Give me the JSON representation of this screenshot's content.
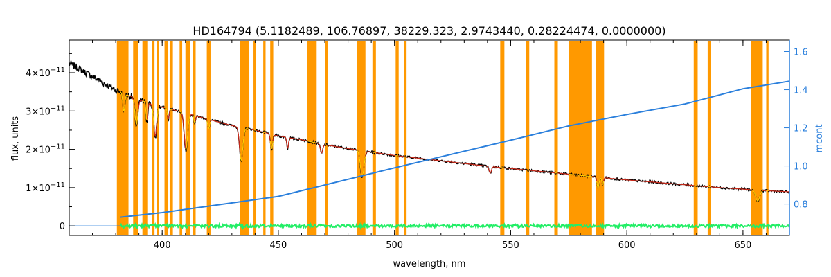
{
  "chart_data": {
    "type": "line",
    "title": "HD164794    (5.1182489, 106.76897, 38229.323, 2.9743440, 0.28224474, 0.0000000)",
    "xlabel": "wavelength, nm",
    "ylabel": "flux, units",
    "y2label": "mcont",
    "xlim": [
      360,
      670
    ],
    "ylim": [
      -0.25,
      4.85
    ],
    "y_unit_power": "-11",
    "y2lim": [
      0.635,
      1.66
    ],
    "x_ticks": [
      400,
      450,
      500,
      550,
      600,
      650
    ],
    "y_ticks": [
      {
        "value": 0,
        "mant": "0",
        "exp": ""
      },
      {
        "value": 1,
        "mant": "1×10",
        "exp": "−11"
      },
      {
        "value": 2,
        "mant": "2×10",
        "exp": "−11"
      },
      {
        "value": 3,
        "mant": "3×10",
        "exp": "−11"
      },
      {
        "value": 4,
        "mant": "4×10",
        "exp": "−11"
      }
    ],
    "y2_ticks": [
      "0.8",
      "1.0",
      "1.2",
      "1.4",
      "1.6"
    ],
    "colors": {
      "observed": "#000000",
      "model": "#cc2a1a",
      "masked_model": "#ffd200",
      "mcont": "#2a7fdc",
      "residual": "#22ee66",
      "mask": "#ff9900",
      "y2_axis": "#2a7fdc"
    },
    "mask_regions": [
      [
        380.5,
        385.5
      ],
      [
        387.5,
        389.8
      ],
      [
        391.5,
        393.6
      ],
      [
        395.5,
        396.7
      ],
      [
        397.6,
        398.6
      ],
      [
        401.0,
        402.4
      ],
      [
        403.3,
        404.6
      ],
      [
        407.5,
        408.6
      ],
      [
        410.0,
        412.1
      ],
      [
        413.2,
        414.4
      ],
      [
        419.2,
        420.8
      ],
      [
        433.5,
        437.5
      ],
      [
        439.3,
        440.4
      ],
      [
        443.5,
        444.5
      ],
      [
        446.5,
        447.8
      ],
      [
        462.5,
        466.5
      ],
      [
        470.0,
        471.4
      ],
      [
        484.0,
        487.5
      ],
      [
        490.5,
        492.0
      ],
      [
        500.5,
        501.8
      ],
      [
        504.0,
        505.2
      ],
      [
        545.5,
        547.3
      ],
      [
        556.5,
        558.0
      ],
      [
        568.8,
        570.3
      ],
      [
        575.0,
        585.0
      ],
      [
        586.8,
        590.2
      ],
      [
        628.8,
        630.5
      ],
      [
        634.8,
        636.2
      ],
      [
        653.5,
        658.5
      ],
      [
        660.0,
        661.0
      ]
    ],
    "series": [
      {
        "name": "",
        "role": "observed",
        "continuum": [
          [
            360,
            4.25
          ],
          [
            365,
            4.08
          ],
          [
            370,
            3.9
          ],
          [
            375,
            3.72
          ],
          [
            380,
            3.55
          ],
          [
            385,
            3.42
          ],
          [
            390,
            3.3
          ],
          [
            395,
            3.19
          ],
          [
            400,
            3.1
          ],
          [
            410,
            2.95
          ],
          [
            420,
            2.78
          ],
          [
            430,
            2.62
          ],
          [
            440,
            2.5
          ],
          [
            450,
            2.35
          ],
          [
            460,
            2.25
          ],
          [
            470,
            2.12
          ],
          [
            480,
            2.02
          ],
          [
            490,
            1.93
          ],
          [
            500,
            1.84
          ],
          [
            510,
            1.77
          ],
          [
            520,
            1.7
          ],
          [
            530,
            1.63
          ],
          [
            540,
            1.56
          ],
          [
            550,
            1.5
          ],
          [
            560,
            1.44
          ],
          [
            570,
            1.38
          ],
          [
            580,
            1.32
          ],
          [
            590,
            1.26
          ],
          [
            600,
            1.2
          ],
          [
            610,
            1.15
          ],
          [
            620,
            1.1
          ],
          [
            630,
            1.05
          ],
          [
            640,
            1.0
          ],
          [
            650,
            0.96
          ],
          [
            660,
            0.92
          ],
          [
            670,
            0.89
          ]
        ],
        "absorption_lines": [
          {
            "x": 383.5,
            "depth": 0.5,
            "width": 0.6
          },
          {
            "x": 388.9,
            "depth": 0.7,
            "width": 0.9
          },
          {
            "x": 393.4,
            "depth": 0.5,
            "width": 0.5
          },
          {
            "x": 397.0,
            "depth": 0.85,
            "width": 0.9
          },
          {
            "x": 402.6,
            "depth": 0.3,
            "width": 0.5
          },
          {
            "x": 410.2,
            "depth": 1.0,
            "width": 1.0
          },
          {
            "x": 414.0,
            "depth": 0.2,
            "width": 0.5
          },
          {
            "x": 420.0,
            "depth": 0.25,
            "width": 0.6
          },
          {
            "x": 434.0,
            "depth": 0.9,
            "width": 1.0
          },
          {
            "x": 447.1,
            "depth": 0.4,
            "width": 0.7
          },
          {
            "x": 454.0,
            "depth": 0.3,
            "width": 0.5
          },
          {
            "x": 468.6,
            "depth": 0.25,
            "width": 0.7
          },
          {
            "x": 486.1,
            "depth": 0.7,
            "width": 1.1
          },
          {
            "x": 541.2,
            "depth": 0.18,
            "width": 0.7
          },
          {
            "x": 587.6,
            "depth": 0.3,
            "width": 0.6
          },
          {
            "x": 589.6,
            "depth": 0.2,
            "width": 0.5
          },
          {
            "x": 656.3,
            "depth": 0.3,
            "width": 1.2
          }
        ]
      },
      {
        "name": "",
        "role": "mcont",
        "axis": "right",
        "points": [
          [
            382,
            0.731
          ],
          [
            400,
            0.755
          ],
          [
            450,
            0.84
          ],
          [
            500,
            0.99
          ],
          [
            550,
            1.135
          ],
          [
            575,
            1.21
          ],
          [
            600,
            1.27
          ],
          [
            625,
            1.325
          ],
          [
            650,
            1.405
          ],
          [
            670,
            1.445
          ]
        ]
      },
      {
        "name": "",
        "role": "residual",
        "level": 0.0,
        "x_range": [
          382,
          670
        ]
      }
    ]
  }
}
